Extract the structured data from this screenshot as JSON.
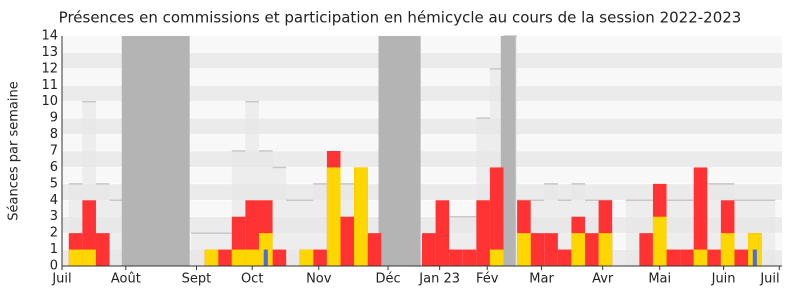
{
  "chart_data": {
    "type": "bar",
    "title": "Présences en commissions et participation en hémicycle au cours de la session 2022-2023",
    "y_label": "Séances par semaine",
    "x": [
      1,
      2,
      3,
      4,
      5,
      6,
      7,
      8,
      9,
      10,
      11,
      12,
      13,
      14,
      15,
      16,
      17,
      18,
      19,
      20,
      21,
      22,
      23,
      24,
      25,
      26,
      27,
      28,
      29,
      30,
      31,
      32,
      33,
      34,
      35,
      36,
      37,
      38,
      39,
      40,
      41,
      42,
      43,
      44,
      45,
      46,
      47,
      48,
      49,
      50,
      51,
      52
    ],
    "series": [
      {
        "color": "#e6e6e6",
        "values": [
          5,
          10,
          5,
          4,
          0,
          0,
          0,
          0,
          0,
          2,
          2,
          2,
          7,
          10,
          7,
          6,
          4,
          4,
          5,
          5,
          5,
          5,
          0,
          0,
          0,
          0,
          0,
          0,
          3,
          3,
          9,
          12,
          14,
          4,
          4,
          5,
          4,
          5,
          4,
          4,
          0,
          4,
          4,
          4,
          4,
          4,
          4,
          5,
          5,
          4,
          4,
          4
        ]
      },
      {
        "color": "#ff3333",
        "values": [
          2,
          4,
          2,
          0,
          0,
          0,
          0,
          0,
          0,
          0,
          1,
          1,
          3,
          4,
          4,
          1,
          0,
          1,
          1,
          7,
          3,
          6,
          2,
          0,
          0,
          0,
          2,
          4,
          1,
          1,
          4,
          6,
          0,
          4,
          2,
          2,
          1,
          3,
          2,
          4,
          0,
          0,
          2,
          5,
          1,
          1,
          6,
          1,
          4,
          1,
          2,
          0
        ]
      },
      {
        "color": "#ffd700",
        "values": [
          1,
          1,
          0,
          0,
          0,
          0,
          0,
          0,
          0,
          0,
          1,
          0,
          1,
          1,
          2,
          0,
          0,
          1,
          0,
          6,
          0,
          6,
          0,
          0,
          0,
          0,
          0,
          0,
          0,
          0,
          0,
          1,
          0,
          2,
          0,
          0,
          0,
          2,
          0,
          2,
          0,
          0,
          0,
          3,
          0,
          0,
          1,
          0,
          2,
          0,
          2,
          0
        ]
      },
      {
        "color": "#4d6ed9",
        "values": [
          0,
          0,
          0,
          0,
          0,
          0,
          0,
          0,
          0,
          0,
          0,
          0,
          0,
          0,
          1,
          0,
          0,
          0,
          0,
          0,
          0,
          0,
          0,
          0,
          0,
          0,
          0,
          0,
          0,
          0,
          0,
          0,
          0,
          0,
          0,
          0,
          0,
          0,
          0,
          0,
          0,
          0,
          0,
          0,
          0,
          0,
          0,
          0,
          0,
          0,
          1,
          0
        ]
      }
    ],
    "shaded_periods": [
      [
        4.4,
        9.4
      ],
      [
        23.3,
        26.4
      ],
      [
        32.3,
        33.4
      ]
    ],
    "shaded_color": "#b4b4b4",
    "xlim": [
      0,
      53
    ],
    "xticks": [
      {
        "value": 0,
        "label": "Juil"
      },
      {
        "value": 4.7,
        "label": "Août"
      },
      {
        "value": 9.9,
        "label": "Sept"
      },
      {
        "value": 14,
        "label": "Oct"
      },
      {
        "value": 18.9,
        "label": "Nov"
      },
      {
        "value": 24,
        "label": "Déc"
      },
      {
        "value": 27.8,
        "label": "Jan 23"
      },
      {
        "value": 31.3,
        "label": "Fév"
      },
      {
        "value": 35.3,
        "label": "Mar"
      },
      {
        "value": 39.8,
        "label": "Avr"
      },
      {
        "value": 44,
        "label": "Mai"
      },
      {
        "value": 48.7,
        "label": "Juin"
      },
      {
        "value": 52.8,
        "label": "Juil"
      }
    ],
    "ylim": [
      0,
      14
    ],
    "yticks": [
      0,
      1,
      2,
      3,
      4,
      5,
      6,
      7,
      8,
      9,
      10,
      11,
      12,
      13,
      14
    ],
    "grid": true
  }
}
